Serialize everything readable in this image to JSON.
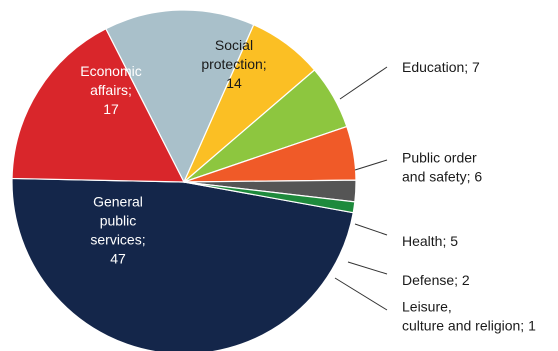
{
  "chart_data": {
    "type": "pie",
    "title": "",
    "slices": [
      {
        "name": "General public services",
        "value": 47,
        "label": [
          "General",
          "public",
          "services;",
          "47"
        ],
        "color": "#14264a"
      },
      {
        "name": "Economic affairs",
        "value": 17,
        "label": [
          "Economic",
          "affairs;",
          "17"
        ],
        "color": "#d9262b"
      },
      {
        "name": "Social protection",
        "value": 14,
        "label": [
          "Social",
          "protection;",
          "14"
        ],
        "color": "#a9c0ca"
      },
      {
        "name": "Education",
        "value": 7,
        "label": [
          "Education; 7"
        ],
        "color": "#fbbf24"
      },
      {
        "name": "Public order and safety",
        "value": 6,
        "label": [
          "Public order",
          "and safety; 6"
        ],
        "color": "#8dc63f"
      },
      {
        "name": "Health",
        "value": 5,
        "label": [
          "Health; 5"
        ],
        "color": "#f05a28"
      },
      {
        "name": "Defense",
        "value": 2,
        "label": [
          "Defense; 2"
        ],
        "color": "#555555"
      },
      {
        "name": "Leisure, culture and religion",
        "value": 1,
        "label": [
          "Leisure,",
          "culture and religion; 1"
        ],
        "color": "#1e8a3c"
      }
    ]
  }
}
